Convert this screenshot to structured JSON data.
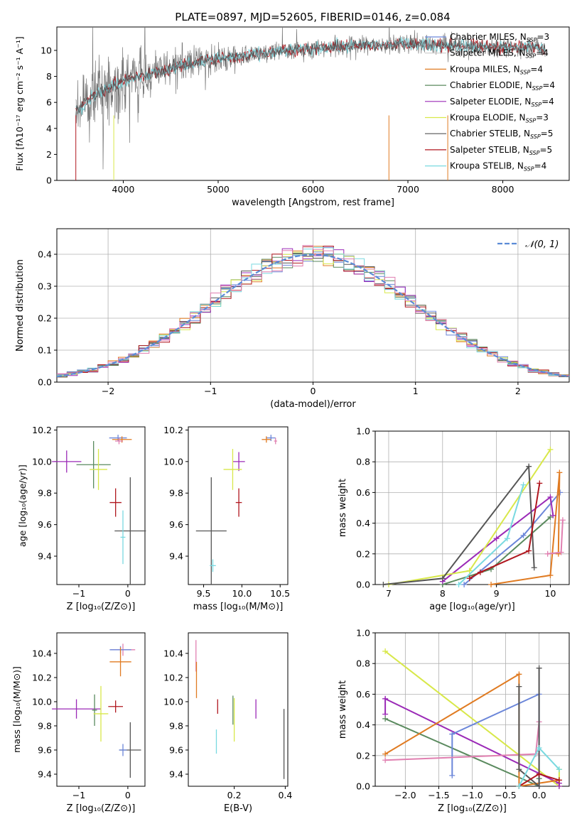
{
  "title": "PLATE=0897, MJD=52605, FIBERID=0146, z=0.084",
  "colors": {
    "Chabrier MILES": "#6b86d9",
    "Salpeter MILES": "#cccccc",
    "Kroupa MILES": "#e07b22",
    "Chabrier ELODIE": "#5a8a5e",
    "Salpeter ELODIE": "#9b2ab7",
    "Kroupa ELODIE": "#d8e84a",
    "Chabrier STELIB": "#555555",
    "Salpeter STELIB": "#b0171f",
    "Kroupa STELIB": "#79d9e0",
    "Kroupa Hist": "#e07fb0",
    "data": "#777777",
    "normal": "#5b8bd6"
  },
  "chart_data": [
    {
      "type": "line",
      "xlabel": "wavelength [Angstrom, rest frame]",
      "ylabel": "Flux [fλ10⁻¹⁷ erg cm⁻² s⁻¹ A⁻¹]",
      "xlim": [
        3300,
        8700
      ],
      "ylim": [
        0,
        11.8
      ],
      "xticks": [
        "4000",
        "5000",
        "6000",
        "7000",
        "8000"
      ],
      "yticks": [
        "0",
        "2",
        "4",
        "6",
        "8",
        "10"
      ],
      "legend_position": "right",
      "legend": [
        {
          "name": "Chabrier MILES",
          "nssp": "3"
        },
        {
          "name": "Salpeter MILES",
          "nssp": "4"
        },
        {
          "name": "Kroupa MILES",
          "nssp": "4"
        },
        {
          "name": "Chabrier ELODIE",
          "nssp": "4"
        },
        {
          "name": "Salpeter ELODIE",
          "nssp": "4"
        },
        {
          "name": "Kroupa ELODIE",
          "nssp": "3"
        },
        {
          "name": "Chabrier STELIB",
          "nssp": "5"
        },
        {
          "name": "Salpeter STELIB",
          "nssp": "5"
        },
        {
          "name": "Kroupa STELIB",
          "nssp": "4"
        }
      ],
      "continuum": {
        "x": [
          3500,
          3700,
          3900,
          4100,
          4300,
          4500,
          4700,
          4900,
          5100,
          5300,
          5500,
          5700,
          5900,
          6100,
          6300,
          6500,
          6700,
          6900,
          7100,
          7300,
          7500,
          7700,
          7900,
          8100,
          8300,
          8450
        ],
        "y": [
          5.4,
          6.6,
          7.3,
          7.9,
          8.2,
          8.6,
          9.0,
          9.3,
          9.4,
          9.6,
          9.8,
          10.0,
          10.1,
          10.2,
          10.3,
          10.4,
          10.4,
          10.5,
          10.5,
          10.4,
          10.4,
          10.3,
          10.3,
          10.2,
          10.3,
          10.1
        ]
      }
    },
    {
      "type": "histogram",
      "xlabel": "(data-model)/error",
      "ylabel": "Normed distribution",
      "xlim": [
        -2.5,
        2.5
      ],
      "ylim": [
        0,
        0.48
      ],
      "xticks": [
        "−2",
        "−1",
        "0",
        "1",
        "2"
      ],
      "yticks": [
        "0.0",
        "0.1",
        "0.2",
        "0.3",
        "0.4"
      ],
      "legend": "𝒩(0, 1)",
      "legend_position": "top-right",
      "bin_width": 0.1
    },
    {
      "type": "scatter",
      "xlabel": "Z [log₁₀(Z/Z⊙)]",
      "ylabel": "age  [log₁₀(age/yr)]",
      "xlim": [
        -1.45,
        0.35
      ],
      "ylim": [
        9.22,
        10.22
      ],
      "xticks": [
        "−1",
        "0"
      ],
      "yticks": [
        "9.4",
        "9.6",
        "9.8",
        "10.0",
        "10.2"
      ],
      "points": [
        {
          "series": "Chabrier MILES",
          "x": -0.2,
          "y": 10.15,
          "xerr": 0.18,
          "yerr": 0.02
        },
        {
          "series": "Kroupa MILES",
          "x": -0.12,
          "y": 10.14,
          "xerr": 0.2,
          "yerr": 0.02
        },
        {
          "series": "Kroupa Hist",
          "x": -0.18,
          "y": 10.13,
          "xerr": 0.08,
          "yerr": 0.02
        },
        {
          "series": "Chabrier ELODIE",
          "x": -0.7,
          "y": 9.98,
          "xerr": 0.35,
          "yerr": 0.15
        },
        {
          "series": "Salpeter ELODIE",
          "x": -1.25,
          "y": 10.0,
          "xerr": 0.3,
          "yerr": 0.07
        },
        {
          "series": "Kroupa ELODIE",
          "x": -0.6,
          "y": 9.95,
          "xerr": 0.18,
          "yerr": 0.13
        },
        {
          "series": "Salpeter STELIB",
          "x": -0.25,
          "y": 9.74,
          "xerr": 0.12,
          "yerr": 0.09
        },
        {
          "series": "Chabrier STELIB",
          "x": 0.05,
          "y": 9.56,
          "xerr": 0.32,
          "yerr": 0.34
        },
        {
          "series": "Kroupa STELIB",
          "x": -0.1,
          "y": 9.52,
          "xerr": 0.05,
          "yerr": 0.17
        }
      ]
    },
    {
      "type": "scatter",
      "xlabel": "mass [log₁₀(M/M⊙)]",
      "ylabel": "",
      "xlim": [
        9.3,
        10.6
      ],
      "ylim": [
        9.22,
        10.22
      ],
      "xticks": [
        "9.5",
        "10.0",
        "10.5"
      ],
      "yticks": [
        "9.4",
        "9.6",
        "9.8",
        "10.0",
        "10.2"
      ],
      "points": [
        {
          "series": "Chabrier MILES",
          "x": 10.38,
          "y": 10.15,
          "xerr": 0.06,
          "yerr": 0.02
        },
        {
          "series": "Kroupa MILES",
          "x": 10.32,
          "y": 10.14,
          "xerr": 0.06,
          "yerr": 0.02
        },
        {
          "series": "Kroupa Hist",
          "x": 10.44,
          "y": 10.13,
          "xerr": 0.02,
          "yerr": 0.02
        },
        {
          "series": "Salpeter ELODIE",
          "x": 9.96,
          "y": 10.0,
          "xerr": 0.08,
          "yerr": 0.06
        },
        {
          "series": "Kroupa ELODIE",
          "x": 9.88,
          "y": 9.95,
          "xerr": 0.12,
          "yerr": 0.13
        },
        {
          "series": "Salpeter STELIB",
          "x": 9.96,
          "y": 9.74,
          "xerr": 0.04,
          "yerr": 0.09
        },
        {
          "series": "Chabrier STELIB",
          "x": 9.6,
          "y": 9.56,
          "xerr": 0.2,
          "yerr": 0.34
        },
        {
          "series": "Kroupa STELIB",
          "x": 9.62,
          "y": 9.34,
          "xerr": 0.04,
          "yerr": 0.04
        }
      ]
    },
    {
      "type": "line",
      "xlabel": "age  [log₁₀(age/yr)]",
      "ylabel": "mass weight",
      "xlim": [
        6.75,
        10.35
      ],
      "ylim": [
        0,
        1.0
      ],
      "xticks": [
        "7",
        "8",
        "9",
        "10"
      ],
      "yticks": [
        "0.0",
        "0.2",
        "0.4",
        "0.6",
        "0.8",
        "1.0"
      ],
      "series": [
        {
          "name": "Chabrier MILES",
          "x": [
            8.4,
            9.5,
            10.18
          ],
          "y": [
            0.0,
            0.32,
            0.6
          ]
        },
        {
          "name": "Kroupa MILES",
          "x": [
            8.9,
            10.0,
            10.17,
            10.15
          ],
          "y": [
            0.0,
            0.06,
            0.73,
            0.2
          ]
        },
        {
          "name": "Chabrier ELODIE",
          "x": [
            8.0,
            8.9,
            10.0
          ],
          "y": [
            0.0,
            0.1,
            0.44
          ]
        },
        {
          "name": "Salpeter ELODIE",
          "x": [
            8.0,
            9.0,
            10.0,
            10.05
          ],
          "y": [
            0.02,
            0.3,
            0.57,
            0.45
          ]
        },
        {
          "name": "Kroupa ELODIE",
          "x": [
            7.0,
            8.5,
            10.0
          ],
          "y": [
            0.0,
            0.09,
            0.88
          ]
        },
        {
          "name": "Chabrier STELIB",
          "x": [
            6.9,
            8.0,
            9.6,
            9.7
          ],
          "y": [
            0.0,
            0.04,
            0.77,
            0.11
          ]
        },
        {
          "name": "Salpeter STELIB",
          "x": [
            8.5,
            8.7,
            9.6,
            9.8
          ],
          "y": [
            0.04,
            0.08,
            0.22,
            0.66
          ]
        },
        {
          "name": "Kroupa STELIB",
          "x": [
            8.3,
            9.2,
            9.5
          ],
          "y": [
            0.0,
            0.3,
            0.65
          ]
        },
        {
          "name": "Kroupa Hist",
          "x": [
            9.95,
            10.2,
            10.23
          ],
          "y": [
            0.2,
            0.21,
            0.42
          ]
        }
      ]
    },
    {
      "type": "scatter",
      "xlabel": "Z [log₁₀(Z/Z⊙)]",
      "ylabel": "mass [log₁₀(M/M⊙)]",
      "xlim": [
        -1.45,
        0.35
      ],
      "ylim": [
        9.3,
        10.57
      ],
      "xticks": [
        "−1",
        "0"
      ],
      "yticks": [
        "9.4",
        "9.6",
        "9.8",
        "10.0",
        "10.2",
        "10.4"
      ],
      "points": [
        {
          "series": "Kroupa Hist",
          "x": -0.1,
          "y": 10.43,
          "xerr": 0.25,
          "yerr": 0.05
        },
        {
          "series": "Chabrier MILES",
          "x": -0.15,
          "y": 10.43,
          "xerr": 0.22,
          "yerr": 0.03
        },
        {
          "series": "Kroupa MILES",
          "x": -0.15,
          "y": 10.33,
          "xerr": 0.22,
          "yerr": 0.12
        },
        {
          "series": "Salpeter ELODIE",
          "x": -1.05,
          "y": 9.94,
          "xerr": 0.5,
          "yerr": 0.08
        },
        {
          "series": "Chabrier ELODIE",
          "x": -0.68,
          "y": 9.93,
          "xerr": 0.05,
          "yerr": 0.13
        },
        {
          "series": "Kroupa ELODIE",
          "x": -0.55,
          "y": 9.9,
          "xerr": 0.15,
          "yerr": 0.23
        },
        {
          "series": "Salpeter STELIB",
          "x": -0.25,
          "y": 9.96,
          "xerr": 0.15,
          "yerr": 0.05
        },
        {
          "series": "Chabrier STELIB",
          "x": 0.05,
          "y": 9.6,
          "xerr": 0.22,
          "yerr": 0.23
        },
        {
          "series": "Chabrier MILES",
          "x": -0.1,
          "y": 9.6,
          "xerr": 0.08,
          "yerr": 0.05
        }
      ]
    },
    {
      "type": "scatter",
      "xlabel": "E(B-V)",
      "ylabel": "",
      "xlim": [
        0.02,
        0.41
      ],
      "ylim": [
        9.3,
        10.57
      ],
      "xticks": [
        "0.2",
        "0.4"
      ],
      "yticks": [
        "9.4",
        "9.6",
        "9.8",
        "10.0",
        "10.2",
        "10.4"
      ],
      "points": [
        {
          "series": "Kroupa Hist",
          "x": 0.05,
          "y": 10.38,
          "xerr": 0,
          "yerr": 0.13
        },
        {
          "series": "Kroupa MILES",
          "x": 0.052,
          "y": 10.18,
          "xerr": 0,
          "yerr": 0.15
        },
        {
          "series": "Kroupa STELIB",
          "x": 0.13,
          "y": 9.67,
          "xerr": 0,
          "yerr": 0.1
        },
        {
          "series": "Salpeter STELIB",
          "x": 0.135,
          "y": 9.96,
          "xerr": 0,
          "yerr": 0.06
        },
        {
          "series": "Chabrier ELODIE",
          "x": 0.195,
          "y": 9.93,
          "xerr": 0,
          "yerr": 0.12
        },
        {
          "series": "Kroupa ELODIE",
          "x": 0.2,
          "y": 9.85,
          "xerr": 0,
          "yerr": 0.18
        },
        {
          "series": "Salpeter ELODIE",
          "x": 0.285,
          "y": 9.94,
          "xerr": 0,
          "yerr": 0.08
        },
        {
          "series": "Chabrier STELIB",
          "x": 0.395,
          "y": 9.65,
          "xerr": 0,
          "yerr": 0.29
        }
      ]
    },
    {
      "type": "line",
      "xlabel": "Z [log₁₀(Z/Z⊙)]",
      "ylabel": "mass weight",
      "xlim": [
        -2.45,
        0.45
      ],
      "ylim": [
        0,
        1.0
      ],
      "xticks": [
        "−2.0",
        "−1.5",
        "−1.0",
        "−0.5",
        "0.0"
      ],
      "yticks": [
        "0.0",
        "0.2",
        "0.4",
        "0.6",
        "0.8",
        "1.0"
      ],
      "series": [
        {
          "name": "Kroupa ELODIE",
          "x": [
            -2.3,
            0.3,
            0.3
          ],
          "y": [
            0.88,
            0.0,
            0.11
          ]
        },
        {
          "name": "Salpeter ELODIE",
          "x": [
            -2.3,
            -2.3,
            -2.3,
            0.3,
            0.3
          ],
          "y": [
            0.57,
            0.47,
            0.57,
            0.02,
            0.0
          ]
        },
        {
          "name": "Chabrier ELODIE",
          "x": [
            -2.3,
            0.0,
            0.0
          ],
          "y": [
            0.44,
            0.0,
            0.05
          ]
        },
        {
          "name": "Kroupa MILES",
          "x": [
            -2.3,
            -0.3,
            -0.3,
            0.3
          ],
          "y": [
            0.21,
            0.73,
            0.0,
            0.04
          ]
        },
        {
          "name": "Chabrier MILES",
          "x": [
            -1.3,
            -1.3,
            0.0,
            0.0
          ],
          "y": [
            0.07,
            0.34,
            0.6,
            0.0
          ]
        },
        {
          "name": "Kroupa Hist",
          "x": [
            -2.3,
            -0.05,
            0.0
          ],
          "y": [
            0.17,
            0.21,
            0.42
          ]
        },
        {
          "name": "Chabrier STELIB",
          "x": [
            -0.3,
            -0.3,
            0.0,
            0.0
          ],
          "y": [
            0.65,
            0.11,
            0.0,
            0.77
          ]
        },
        {
          "name": "Salpeter STELIB",
          "x": [
            -0.3,
            0.0,
            0.3
          ],
          "y": [
            0.0,
            0.08,
            0.04
          ]
        },
        {
          "name": "Kroupa STELIB",
          "x": [
            -0.3,
            0.0,
            0.3
          ],
          "y": [
            0.0,
            0.25,
            0.11
          ]
        }
      ]
    }
  ]
}
